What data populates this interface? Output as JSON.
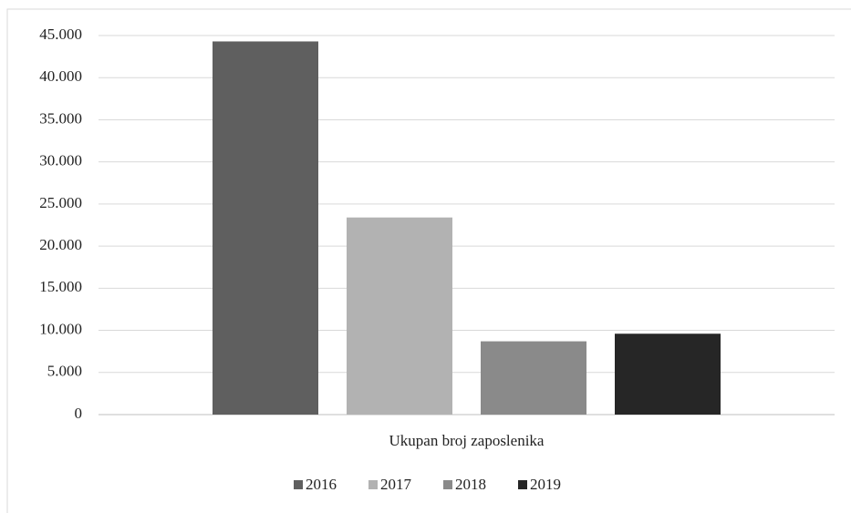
{
  "chart_data": {
    "type": "bar",
    "categories": [
      "Ukupan broj zaposlenika"
    ],
    "series": [
      {
        "name": "2016",
        "color": "#5f5f5f",
        "values": [
          44300
        ]
      },
      {
        "name": "2017",
        "color": "#b2b2b2",
        "values": [
          23400
        ]
      },
      {
        "name": "2018",
        "color": "#8a8a8a",
        "values": [
          8700
        ]
      },
      {
        "name": "2019",
        "color": "#262626",
        "values": [
          9600
        ]
      }
    ],
    "ylim": [
      0,
      45000
    ],
    "yticks": [
      0,
      {
        "value": 5000,
        "label": "5.000"
      },
      {
        "value": 10000,
        "label": "10.000"
      },
      {
        "value": 15000,
        "label": "15.000"
      },
      {
        "value": 20000,
        "label": "20.000"
      },
      {
        "value": 25000,
        "label": "25.000"
      },
      {
        "value": 30000,
        "label": "30.000"
      },
      {
        "value": 35000,
        "label": "35.000"
      },
      {
        "value": 40000,
        "label": "40.000"
      },
      {
        "value": 45000,
        "label": "45.000"
      }
    ],
    "grid": true,
    "legend": "bottom"
  }
}
